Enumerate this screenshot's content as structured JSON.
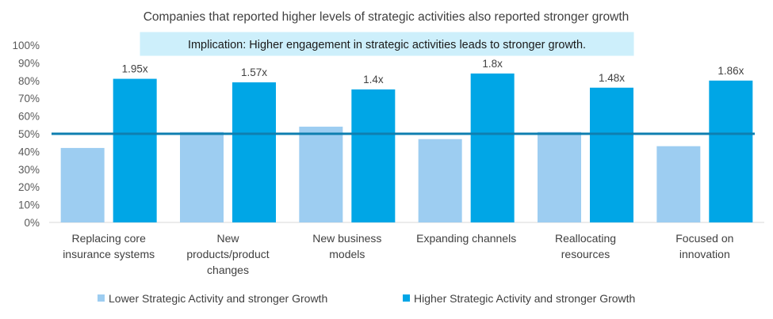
{
  "chart_data": {
    "type": "bar",
    "title": "Companies that reported higher levels of strategic activities also reported stronger growth",
    "annotation": "Implication: Higher engagement in strategic activities leads to stronger growth.",
    "categories": [
      [
        "Replacing core",
        "insurance systems"
      ],
      [
        "New",
        "products/product",
        "changes"
      ],
      [
        "New business",
        "models"
      ],
      [
        "Expanding channels"
      ],
      [
        "Reallocating",
        "resources"
      ],
      [
        "Focused on",
        "innovation"
      ]
    ],
    "series": [
      {
        "name": "Lower Strategic Activity and stronger Growth",
        "color": "#9dcdf1",
        "values": [
          42,
          51,
          54,
          47,
          51,
          43
        ]
      },
      {
        "name": "Higher Strategic Activity and stronger Growth",
        "color": "#00a6e6",
        "values": [
          81,
          79,
          75,
          84,
          76,
          80
        ]
      }
    ],
    "data_labels": [
      "1.95x",
      "1.57x",
      "1.4x",
      "1.8x",
      "1.48x",
      "1.86x"
    ],
    "reference_line": {
      "value": 50,
      "color": "#0f7fb0"
    },
    "ylim": [
      0,
      100
    ],
    "yticks": [
      0,
      10,
      20,
      30,
      40,
      50,
      60,
      70,
      80,
      90,
      100
    ],
    "ytick_labels": [
      "0%",
      "10%",
      "20%",
      "30%",
      "40%",
      "50%",
      "60%",
      "70%",
      "80%",
      "90%",
      "100%"
    ],
    "xlabel": "",
    "ylabel": "",
    "grid": false,
    "legend_position": "bottom"
  }
}
